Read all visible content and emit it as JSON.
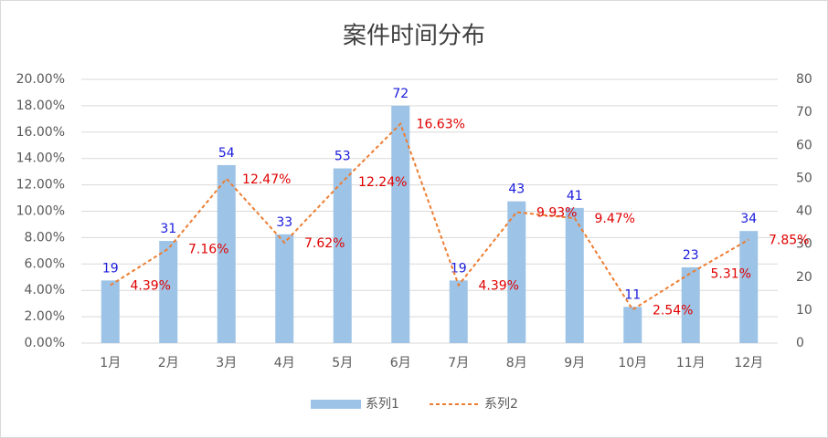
{
  "chart_data": {
    "type": "combo",
    "title": "案件时间分布",
    "categories": [
      "1月",
      "2月",
      "3月",
      "4月",
      "5月",
      "6月",
      "7月",
      "8月",
      "9月",
      "10月",
      "11月",
      "12月"
    ],
    "series": [
      {
        "name": "系列1",
        "type": "bar",
        "axis": "y2",
        "color": "#9dc3e6",
        "label_color": "#1a1adb",
        "values": [
          19,
          31,
          54,
          33,
          53,
          72,
          19,
          43,
          41,
          11,
          23,
          34
        ]
      },
      {
        "name": "系列2",
        "type": "line",
        "color": "#ed7d31",
        "label_color": "#e00000",
        "dashed": true,
        "values": [
          4.39,
          7.16,
          12.47,
          7.62,
          12.24,
          16.63,
          4.39,
          9.93,
          9.47,
          2.54,
          5.31,
          7.85
        ],
        "value_labels": [
          "4.39%",
          "7.16%",
          "12.47%",
          "7.62%",
          "12.24%",
          "16.63%",
          "4.39%",
          "9.93%",
          "9.47%",
          "2.54%",
          "5.31%",
          "7.85%"
        ]
      }
    ],
    "ylim": [
      0,
      20
    ],
    "yticks": [
      {
        "value": 0,
        "label": "0.00%"
      },
      {
        "value": 2,
        "label": "2.00%"
      },
      {
        "value": 4,
        "label": "4.00%"
      },
      {
        "value": 6,
        "label": "6.00%"
      },
      {
        "value": 8,
        "label": "8.00%"
      },
      {
        "value": 10,
        "label": "10.00%"
      },
      {
        "value": 12,
        "label": "12.00%"
      },
      {
        "value": 14,
        "label": "14.00%"
      },
      {
        "value": 16,
        "label": "16.00%"
      },
      {
        "value": 18,
        "label": "18.00%"
      },
      {
        "value": 20,
        "label": "20.00%"
      }
    ],
    "y2lim": [
      0,
      80
    ],
    "y2ticks": [
      0,
      10,
      20,
      30,
      40,
      50,
      60,
      70,
      80
    ],
    "grid": true,
    "legend": "bottom"
  }
}
